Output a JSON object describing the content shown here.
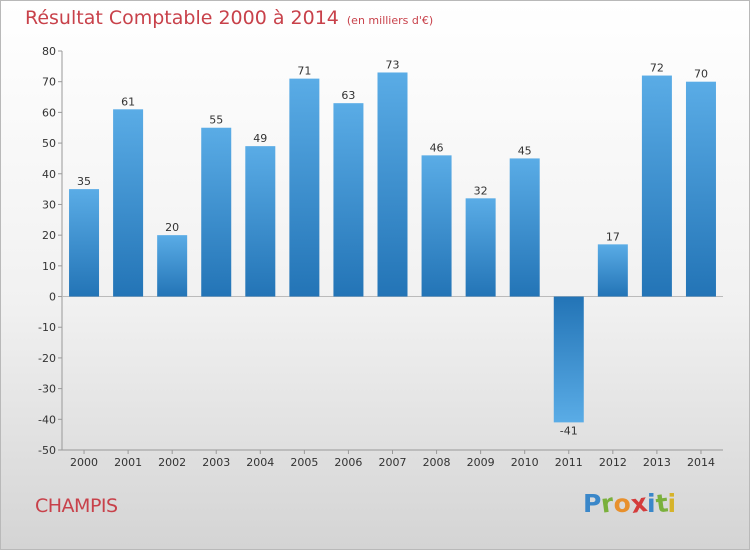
{
  "title": "Résultat Comptable 2000 à 2014",
  "unit_note": "(en milliers d'€)",
  "commune": "CHAMPIS",
  "logo": {
    "letters": [
      "P",
      "r",
      "o",
      "x",
      "i",
      "t",
      "i"
    ],
    "colors": [
      "#3a87c9",
      "#7ab03c",
      "#e8902c",
      "#d43c3c",
      "#3a87c9",
      "#7ab03c",
      "#d6b32a"
    ]
  },
  "colors": {
    "bar_top": "#5aace6",
    "bar_bottom": "#2374b6",
    "title": "#c8414a"
  },
  "chart_data": {
    "type": "bar",
    "categories": [
      "2000",
      "2001",
      "2002",
      "2003",
      "2004",
      "2005",
      "2006",
      "2007",
      "2008",
      "2009",
      "2010",
      "2011",
      "2012",
      "2013",
      "2014"
    ],
    "values": [
      35,
      61,
      20,
      55,
      49,
      71,
      63,
      73,
      46,
      32,
      45,
      -41,
      17,
      72,
      70
    ],
    "ylim": [
      -50,
      80
    ],
    "yticks": [
      80,
      70,
      60,
      50,
      40,
      30,
      20,
      10,
      0,
      -10,
      -20,
      -30,
      -40,
      -50
    ],
    "grid": false,
    "legend": "none"
  }
}
